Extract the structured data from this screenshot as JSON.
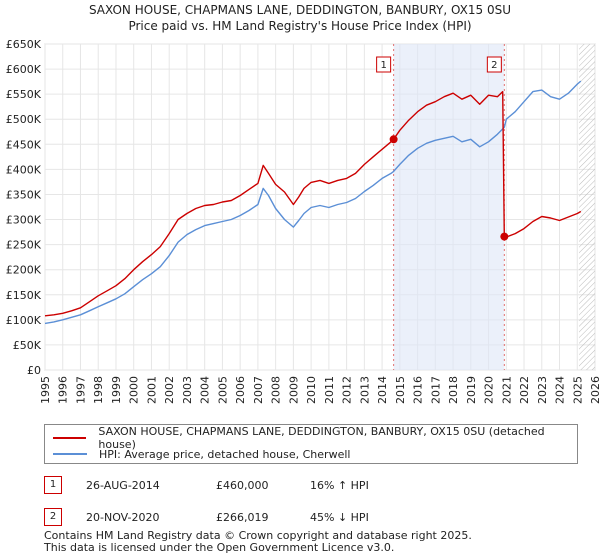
{
  "chart_data": {
    "type": "line",
    "title": "SAXON HOUSE, CHAPMANS LANE, DEDDINGTON, BANBURY, OX15 0SU",
    "subtitle": "Price paid vs. HM Land Registry's House Price Index (HPI)",
    "xlim": [
      1995,
      2026
    ],
    "ylim": [
      0,
      650000
    ],
    "y_ticks": [
      0,
      50000,
      100000,
      150000,
      200000,
      250000,
      300000,
      350000,
      400000,
      450000,
      500000,
      550000,
      600000,
      650000
    ],
    "y_tick_labels": [
      "£0",
      "£50K",
      "£100K",
      "£150K",
      "£200K",
      "£250K",
      "£300K",
      "£350K",
      "£400K",
      "£450K",
      "£500K",
      "£550K",
      "£600K",
      "£650K"
    ],
    "x_tick_labels": [
      "1995",
      "1996",
      "1997",
      "1998",
      "1999",
      "2000",
      "2001",
      "2002",
      "2003",
      "2004",
      "2005",
      "2006",
      "2007",
      "2008",
      "2009",
      "2010",
      "2011",
      "2012",
      "2013",
      "2014",
      "2015",
      "2016",
      "2017",
      "2018",
      "2019",
      "2020",
      "2021",
      "2022",
      "2023",
      "2024",
      "2025",
      "2026"
    ],
    "grid": true,
    "shaded_region": [
      2014.65,
      2020.89
    ],
    "future_hatch_start": 2025.1,
    "series": [
      {
        "name": "SAXON HOUSE, CHAPMANS LANE, DEDDINGTON, BANBURY, OX15 0SU (detached house)",
        "color": "#cc0000",
        "x": [
          1995.0,
          1995.5,
          1996.0,
          1996.5,
          1997.0,
          1997.5,
          1998.0,
          1998.5,
          1999.0,
          1999.5,
          2000.0,
          2000.5,
          2001.0,
          2001.5,
          2002.0,
          2002.5,
          2003.0,
          2003.5,
          2004.0,
          2004.5,
          2005.0,
          2005.5,
          2006.0,
          2006.5,
          2007.0,
          2007.3,
          2007.6,
          2008.0,
          2008.5,
          2009.0,
          2009.3,
          2009.6,
          2010.0,
          2010.5,
          2011.0,
          2011.5,
          2012.0,
          2012.5,
          2013.0,
          2013.5,
          2014.0,
          2014.5,
          2014.65,
          2015.0,
          2015.5,
          2016.0,
          2016.5,
          2017.0,
          2017.5,
          2018.0,
          2018.5,
          2019.0,
          2019.5,
          2020.0,
          2020.5,
          2020.8,
          2020.89,
          2021.0,
          2021.5,
          2022.0,
          2022.5,
          2023.0,
          2023.5,
          2024.0,
          2024.5,
          2025.0,
          2025.2
        ],
        "values": [
          108000,
          110000,
          113000,
          118000,
          124000,
          136000,
          148000,
          158000,
          168000,
          182000,
          200000,
          216000,
          230000,
          246000,
          272000,
          300000,
          312000,
          322000,
          328000,
          330000,
          335000,
          338000,
          348000,
          360000,
          372000,
          408000,
          392000,
          370000,
          355000,
          330000,
          345000,
          362000,
          374000,
          378000,
          372000,
          378000,
          382000,
          392000,
          410000,
          425000,
          440000,
          455000,
          460000,
          478000,
          498000,
          515000,
          528000,
          535000,
          545000,
          552000,
          540000,
          548000,
          530000,
          548000,
          545000,
          555000,
          266019,
          265000,
          272000,
          282000,
          296000,
          306000,
          303000,
          298000,
          305000,
          312000,
          316000
        ]
      },
      {
        "name": "HPI: Average price, detached house, Cherwell",
        "color": "#5b8fd6",
        "x": [
          1995.0,
          1995.5,
          1996.0,
          1996.5,
          1997.0,
          1997.5,
          1998.0,
          1998.5,
          1999.0,
          1999.5,
          2000.0,
          2000.5,
          2001.0,
          2001.5,
          2002.0,
          2002.5,
          2003.0,
          2003.5,
          2004.0,
          2004.5,
          2005.0,
          2005.5,
          2006.0,
          2006.5,
          2007.0,
          2007.3,
          2007.6,
          2008.0,
          2008.5,
          2009.0,
          2009.3,
          2009.6,
          2010.0,
          2010.5,
          2011.0,
          2011.5,
          2012.0,
          2012.5,
          2013.0,
          2013.5,
          2014.0,
          2014.5,
          2014.65,
          2015.0,
          2015.5,
          2016.0,
          2016.5,
          2017.0,
          2017.5,
          2018.0,
          2018.5,
          2019.0,
          2019.5,
          2020.0,
          2020.5,
          2020.89,
          2021.0,
          2021.5,
          2022.0,
          2022.5,
          2023.0,
          2023.5,
          2024.0,
          2024.5,
          2025.0,
          2025.2
        ],
        "values": [
          93000,
          96000,
          100000,
          105000,
          110000,
          118000,
          126000,
          134000,
          142000,
          152000,
          166000,
          180000,
          192000,
          206000,
          228000,
          255000,
          270000,
          280000,
          288000,
          292000,
          296000,
          300000,
          308000,
          318000,
          330000,
          362000,
          348000,
          322000,
          300000,
          285000,
          298000,
          312000,
          324000,
          328000,
          324000,
          330000,
          334000,
          342000,
          356000,
          368000,
          382000,
          392000,
          396000,
          410000,
          428000,
          442000,
          452000,
          458000,
          462000,
          466000,
          455000,
          460000,
          445000,
          455000,
          470000,
          484000,
          500000,
          515000,
          535000,
          555000,
          558000,
          545000,
          540000,
          552000,
          570000,
          576000
        ]
      }
    ],
    "markers": [
      {
        "label": "1",
        "x": 2014.65,
        "y": 460000
      },
      {
        "label": "2",
        "x": 2020.89,
        "y": 266019
      }
    ]
  },
  "legend": {
    "items": [
      {
        "label": "SAXON HOUSE, CHAPMANS LANE, DEDDINGTON, BANBURY, OX15 0SU (detached house)",
        "color": "#cc0000"
      },
      {
        "label": "HPI: Average price, detached house, Cherwell",
        "color": "#5b8fd6"
      }
    ]
  },
  "transactions": [
    {
      "num": "1",
      "date": "26-AUG-2014",
      "price": "£460,000",
      "hpi": "16% ↑ HPI"
    },
    {
      "num": "2",
      "date": "20-NOV-2020",
      "price": "£266,019",
      "hpi": "45% ↓ HPI"
    }
  ],
  "footer": {
    "line1": "Contains HM Land Registry data © Crown copyright and database right 2025.",
    "line2": "This data is licensed under the Open Government Licence v3.0."
  }
}
